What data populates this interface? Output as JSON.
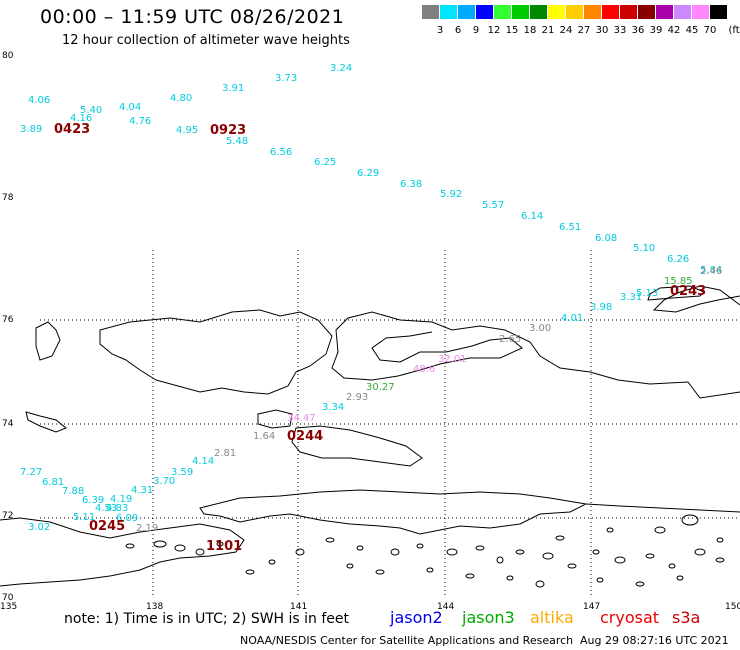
{
  "header": {
    "title": "00:00 – 11:59 UTC 08/26/2021",
    "subtitle": "12 hour collection of altimeter wave heights"
  },
  "colorbar": {
    "unit_label": "(ft)",
    "ticks": [
      "3",
      "6",
      "9",
      "12",
      "15",
      "18",
      "21",
      "24",
      "27",
      "30",
      "33",
      "36",
      "39",
      "42",
      "45",
      "70"
    ],
    "colors": [
      "#7f7f7f",
      "#00e5ff",
      "#00aaff",
      "#0000ff",
      "#33ff33",
      "#00cc00",
      "#008800",
      "#ffff00",
      "#ffcc00",
      "#ff8800",
      "#ff0000",
      "#cc0000",
      "#880000",
      "#aa00aa",
      "#cc88ff",
      "#ff88ff",
      "#000000"
    ]
  },
  "axes": {
    "lat_labels": [
      "80",
      "78",
      "76",
      "74",
      "72",
      "70"
    ],
    "lon_labels": [
      "135",
      "138",
      "141",
      "144",
      "147",
      "150"
    ]
  },
  "wave_labels": [
    {
      "t": "4.06",
      "c": "#00ccdd"
    },
    {
      "t": "5.40",
      "c": "#00ccdd"
    },
    {
      "t": "4.04",
      "c": "#00ccdd"
    },
    {
      "t": "4.80",
      "c": "#00ccdd"
    },
    {
      "t": "3.91",
      "c": "#00ccdd"
    },
    {
      "t": "3.73",
      "c": "#00ccdd"
    },
    {
      "t": "3.24",
      "c": "#00ccdd"
    },
    {
      "t": "4.16",
      "c": "#00ccdd"
    },
    {
      "t": "4.76",
      "c": "#00ccdd"
    },
    {
      "t": "3.89",
      "c": "#00ccdd"
    },
    {
      "t": "4.95",
      "c": "#00ccdd"
    },
    {
      "t": "5.48",
      "c": "#00ccdd"
    },
    {
      "t": "6.56",
      "c": "#00ccdd"
    },
    {
      "t": "6.25",
      "c": "#00ccdd"
    },
    {
      "t": "6.29",
      "c": "#00ccdd"
    },
    {
      "t": "6.38",
      "c": "#00ccdd"
    },
    {
      "t": "5.92",
      "c": "#00ccdd"
    },
    {
      "t": "5.57",
      "c": "#00ccdd"
    },
    {
      "t": "6.14",
      "c": "#00ccdd"
    },
    {
      "t": "6.51",
      "c": "#00ccdd"
    },
    {
      "t": "6.08",
      "c": "#00ccdd"
    },
    {
      "t": "5.10",
      "c": "#00ccdd"
    },
    {
      "t": "6.26",
      "c": "#00ccdd"
    },
    {
      "t": "5.84",
      "c": "#00ccdd"
    },
    {
      "t": "5.13",
      "c": "#00ccdd"
    },
    {
      "t": "3.31",
      "c": "#00ccdd"
    },
    {
      "t": "3.98",
      "c": "#00ccdd"
    },
    {
      "t": "4.01",
      "c": "#00ccdd"
    },
    {
      "t": "3.00",
      "c": "#888888"
    },
    {
      "t": "2.65",
      "c": "#888888"
    },
    {
      "t": "32.01",
      "c": "#ee88ee"
    },
    {
      "t": "48.6",
      "c": "#ee88ee"
    },
    {
      "t": "30.27",
      "c": "#33aa33"
    },
    {
      "t": "2.93",
      "c": "#888888"
    },
    {
      "t": "3.34",
      "c": "#00ccdd"
    },
    {
      "t": "34.47",
      "c": "#ee88ee"
    },
    {
      "t": "1.64",
      "c": "#888888"
    },
    {
      "t": "2.81",
      "c": "#888888"
    },
    {
      "t": "4.14",
      "c": "#00ccdd"
    },
    {
      "t": "3.59",
      "c": "#00ccdd"
    },
    {
      "t": "3.70",
      "c": "#00ccdd"
    },
    {
      "t": "4.31",
      "c": "#00ccdd"
    },
    {
      "t": "4.19",
      "c": "#00ccdd"
    },
    {
      "t": "7.27",
      "c": "#00ccdd"
    },
    {
      "t": "6.81",
      "c": "#00ccdd"
    },
    {
      "t": "7.88",
      "c": "#00ccdd"
    },
    {
      "t": "6.39",
      "c": "#00ccdd"
    },
    {
      "t": "4.53",
      "c": "#00ccdd"
    },
    {
      "t": "4.83",
      "c": "#00ccdd"
    },
    {
      "t": "5.11",
      "c": "#00ccdd"
    },
    {
      "t": "6.09",
      "c": "#00ccdd"
    },
    {
      "t": "3.02",
      "c": "#00ccdd"
    },
    {
      "t": "2.19",
      "c": "#888888"
    },
    {
      "t": "15.85",
      "c": "#33aa33"
    },
    {
      "t": "2.46",
      "c": "#888888"
    }
  ],
  "time_labels": [
    "0423",
    "0923",
    "0243",
    "0244",
    "0245",
    "1101"
  ],
  "footer": {
    "note": "note:  1) Time is in UTC;  2) SWH is in feet",
    "legend": [
      {
        "name": "jason2",
        "color": "#0000ee"
      },
      {
        "name": "jason3",
        "color": "#00aa00"
      },
      {
        "name": "altika",
        "color": "#ffaa00"
      },
      {
        "name": "cryosat",
        "color": "#ee0000"
      },
      {
        "name": "s3a",
        "color": "#cc0000"
      }
    ],
    "credit": "NOAA/NESDIS Center for Satellite Applications and Research",
    "timestamp": "Aug 29 08:27:16 UTC 2021"
  }
}
